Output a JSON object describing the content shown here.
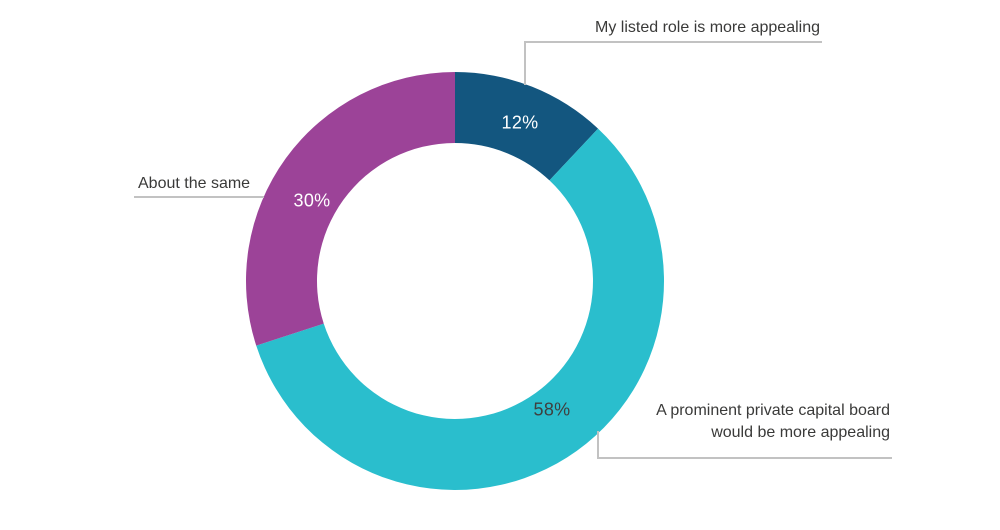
{
  "page": {
    "background_color": "#FFFFFF"
  },
  "chart_data": {
    "type": "pie",
    "subtype": "donut",
    "unit": "%",
    "start_angle_deg": 0,
    "direction": "clockwise",
    "grid": "off",
    "legend_position": "callout-labels",
    "label_text_color": "#3A3A39",
    "leader_line_color": "#C2C2C2",
    "segments": [
      {
        "label": "My listed role is more appealing",
        "value": 12,
        "display_value": "12%",
        "color": "#13567F",
        "value_label_color": "#FFFFFF"
      },
      {
        "label": "A prominent private capital board would be more appealing",
        "value": 58,
        "display_value": "58%",
        "color": "#2ABECD",
        "value_label_color": "#3F3F3E"
      },
      {
        "label": "About the same",
        "value": 30,
        "display_value": "30%",
        "color": "#9C4398",
        "value_label_color": "#FFFFFF"
      }
    ]
  }
}
